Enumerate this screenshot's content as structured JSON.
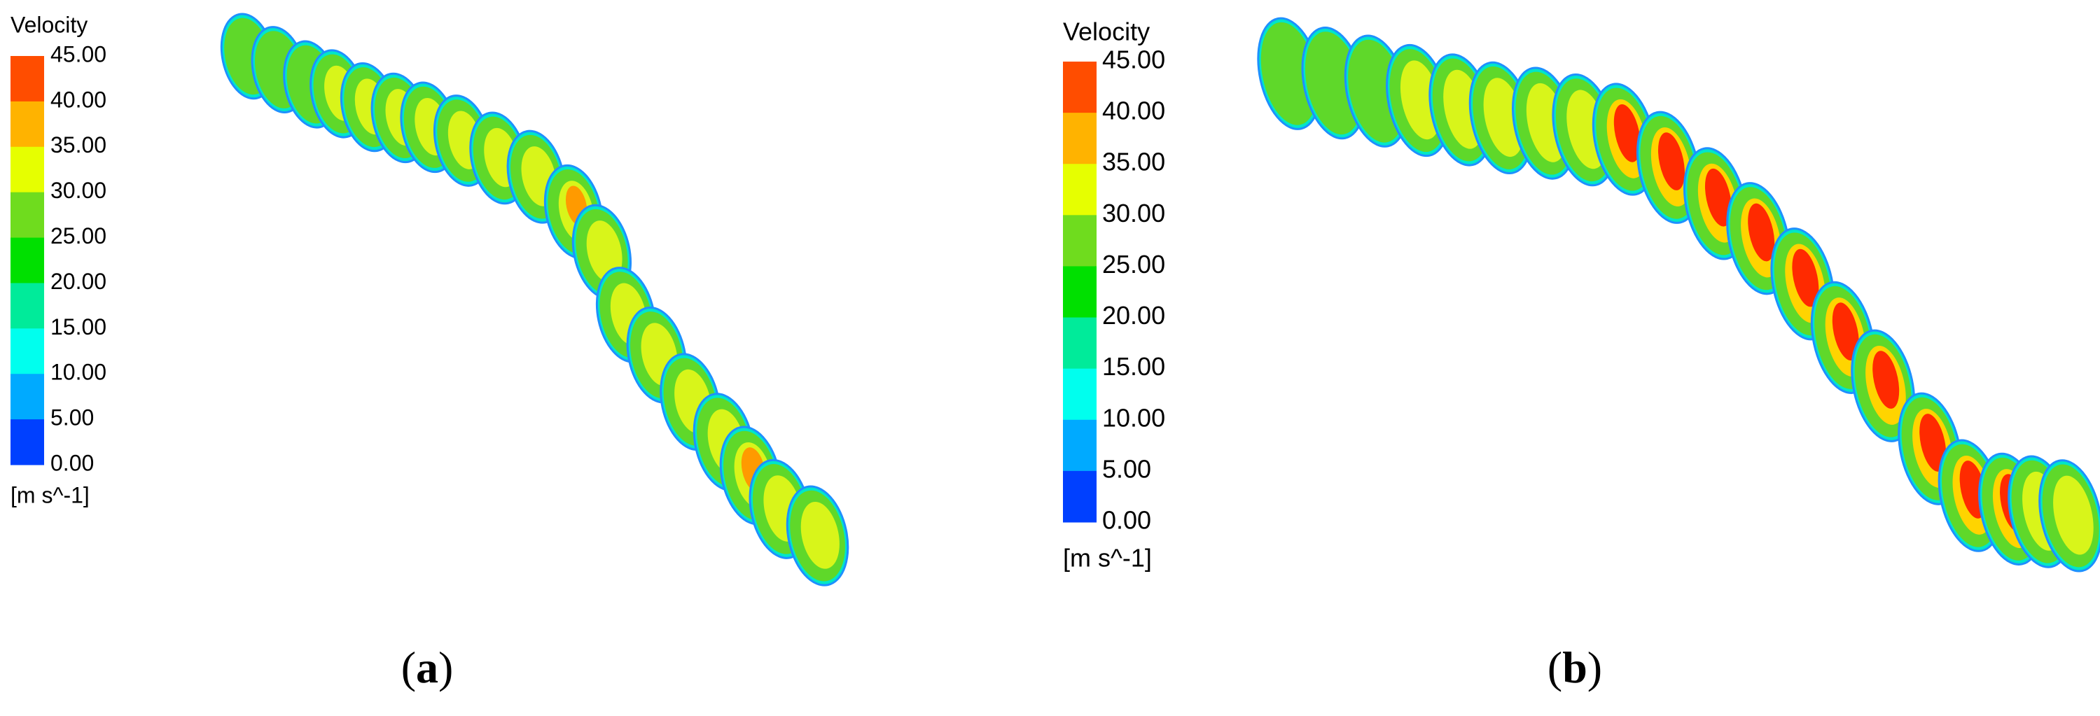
{
  "panels": [
    {
      "legend": {
        "title": "Velocity",
        "ticks": [
          "45.00",
          "40.00",
          "35.00",
          "30.00",
          "25.00",
          "20.00",
          "15.00",
          "10.00",
          "5.00",
          "0.00"
        ],
        "unit": "[m s^-1]"
      },
      "caption": {
        "open": "(",
        "letter": "a",
        "close": ")"
      }
    },
    {
      "legend": {
        "title": "Velocity",
        "ticks": [
          "45.00",
          "40.00",
          "35.00",
          "30.00",
          "25.00",
          "20.00",
          "15.00",
          "10.00",
          "5.00",
          "0.00"
        ],
        "unit": "[m s^-1]"
      },
      "caption": {
        "open": "(",
        "letter": "b",
        "close": ")"
      }
    }
  ]
}
